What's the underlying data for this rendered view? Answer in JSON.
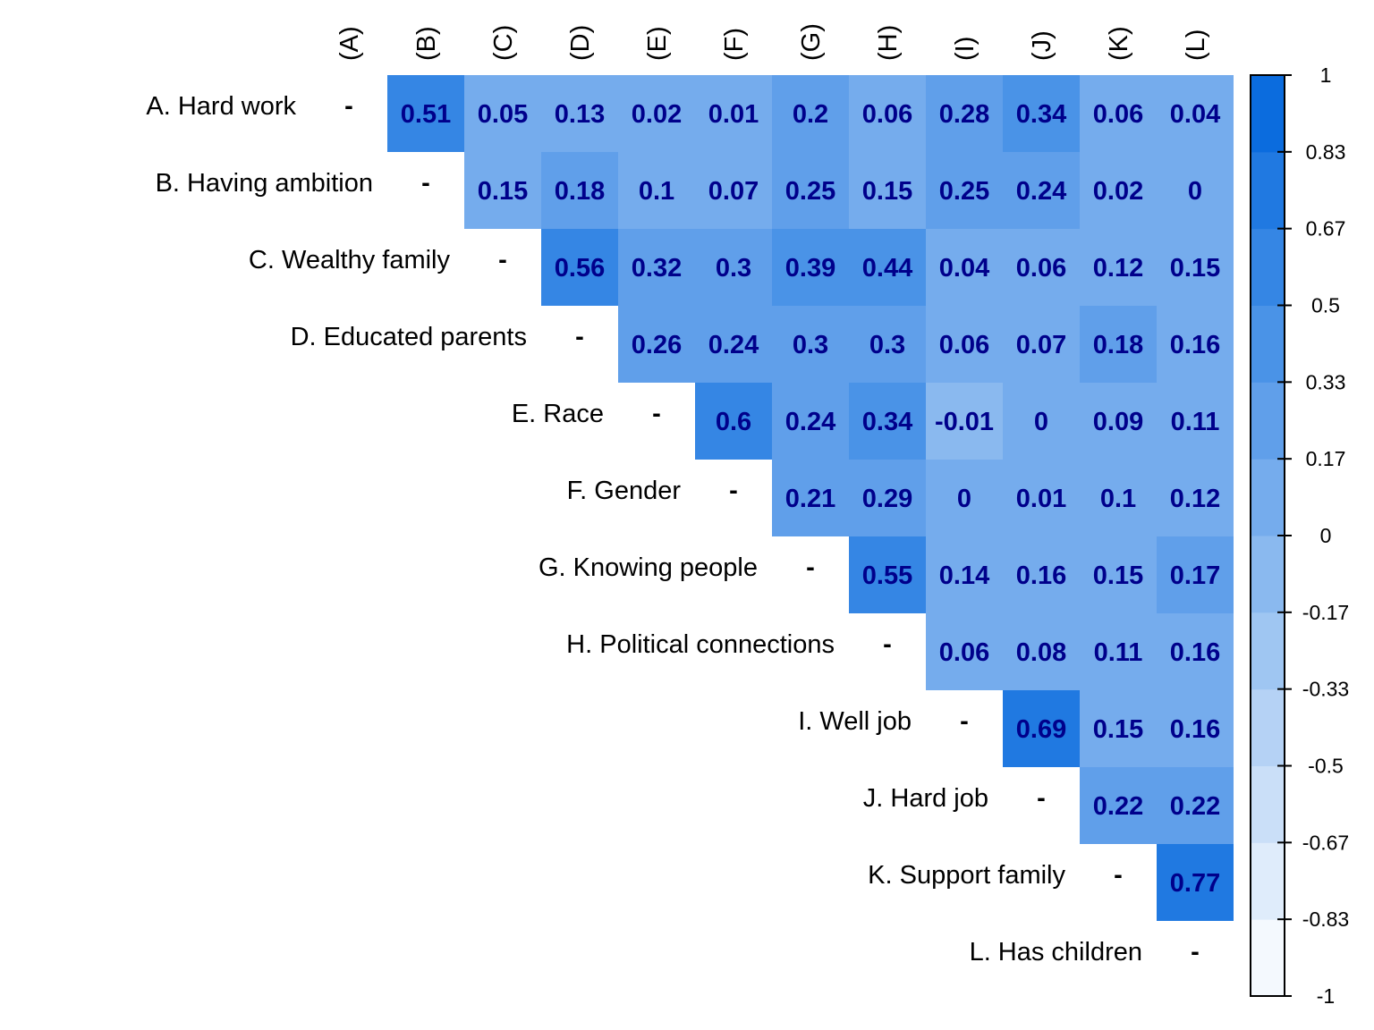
{
  "chart_data": {
    "type": "heatmap",
    "row_labels": [
      "A. Hard work",
      "B. Having ambition",
      "C. Wealthy family",
      "D. Educated parents",
      "E. Race",
      "F. Gender",
      "G. Knowing people",
      "H. Political connections",
      "I. Well job",
      "J. Hard job",
      "K. Support family",
      "L. Has children"
    ],
    "col_labels": [
      "(A)",
      "(B)",
      "(C)",
      "(D)",
      "(E)",
      "(F)",
      "(G)",
      "(H)",
      "(I)",
      "(J)",
      "(K)",
      "(L)"
    ],
    "diagonal_marker": "-",
    "matrix": [
      [
        null,
        0.51,
        0.05,
        0.13,
        0.02,
        0.01,
        0.2,
        0.06,
        0.28,
        0.34,
        0.06,
        0.04
      ],
      [
        null,
        null,
        0.15,
        0.18,
        0.1,
        0.07,
        0.25,
        0.15,
        0.25,
        0.24,
        0.02,
        0
      ],
      [
        null,
        null,
        null,
        0.56,
        0.32,
        0.3,
        0.39,
        0.44,
        0.04,
        0.06,
        0.12,
        0.15
      ],
      [
        null,
        null,
        null,
        null,
        0.26,
        0.24,
        0.3,
        0.3,
        0.06,
        0.07,
        0.18,
        0.16
      ],
      [
        null,
        null,
        null,
        null,
        null,
        0.6,
        0.24,
        0.34,
        -0.01,
        0,
        0.09,
        0.11
      ],
      [
        null,
        null,
        null,
        null,
        null,
        null,
        0.21,
        0.29,
        0,
        0.01,
        0.1,
        0.12
      ],
      [
        null,
        null,
        null,
        null,
        null,
        null,
        null,
        0.55,
        0.14,
        0.16,
        0.15,
        0.17
      ],
      [
        null,
        null,
        null,
        null,
        null,
        null,
        null,
        null,
        0.06,
        0.08,
        0.11,
        0.16
      ],
      [
        null,
        null,
        null,
        null,
        null,
        null,
        null,
        null,
        null,
        0.69,
        0.15,
        0.16
      ],
      [
        null,
        null,
        null,
        null,
        null,
        null,
        null,
        null,
        null,
        null,
        0.22,
        0.22
      ],
      [
        null,
        null,
        null,
        null,
        null,
        null,
        null,
        null,
        null,
        null,
        null,
        0.77
      ],
      [
        null,
        null,
        null,
        null,
        null,
        null,
        null,
        null,
        null,
        null,
        null,
        null
      ]
    ],
    "color_scale": {
      "min": -1,
      "max": 1,
      "low_color": "#ffffff",
      "high_color": "#0066dd",
      "text_color": "#00008b"
    },
    "legend": {
      "ticks": [
        "1",
        "0.83",
        "0.67",
        "0.5",
        "0.33",
        "0.17",
        "0",
        "-0.17",
        "-0.33",
        "-0.5",
        "-0.67",
        "-0.83",
        "-1"
      ],
      "placement": "right"
    }
  }
}
